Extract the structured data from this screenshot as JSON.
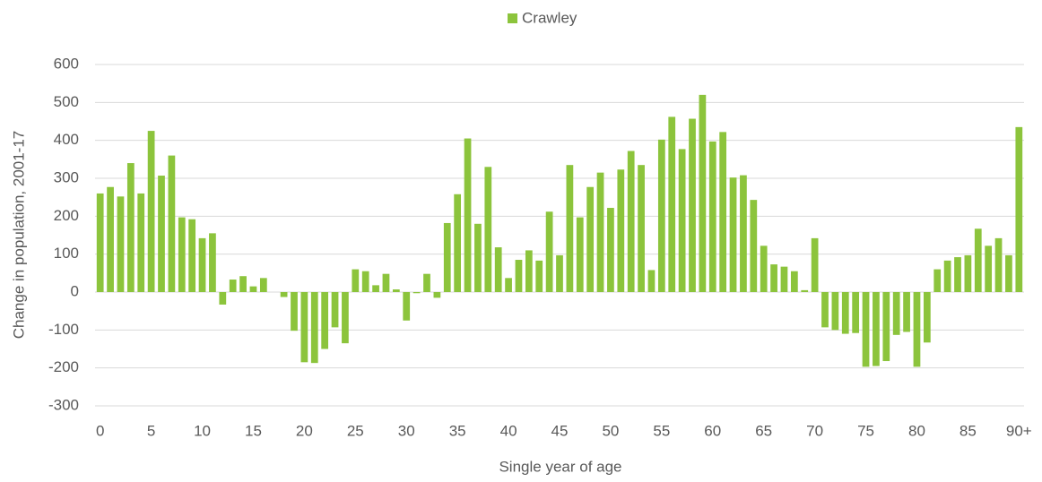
{
  "chart_data": {
    "type": "bar",
    "y_label": "Change in population, 2001-17",
    "x_label": "Single year of age",
    "categories": [
      "0",
      null,
      null,
      null,
      null,
      "5",
      null,
      null,
      null,
      null,
      "10",
      null,
      null,
      null,
      null,
      "15",
      null,
      null,
      null,
      null,
      "20",
      null,
      null,
      null,
      null,
      "25",
      null,
      null,
      null,
      null,
      "30",
      null,
      null,
      null,
      null,
      "35",
      null,
      null,
      null,
      null,
      "40",
      null,
      null,
      null,
      null,
      "45",
      null,
      null,
      null,
      null,
      "50",
      null,
      null,
      null,
      null,
      "55",
      null,
      null,
      null,
      null,
      "60",
      null,
      null,
      null,
      null,
      "65",
      null,
      null,
      null,
      null,
      "70",
      null,
      null,
      null,
      null,
      "75",
      null,
      null,
      null,
      null,
      "80",
      null,
      null,
      null,
      null,
      "85",
      null,
      null,
      null,
      null,
      "90+"
    ],
    "series": [
      {
        "name": "Crawley",
        "color": "#8cc43c",
        "values": [
          260,
          277,
          252,
          340,
          260,
          425,
          307,
          360,
          197,
          192,
          142,
          155,
          -33,
          33,
          42,
          15,
          37,
          0,
          -13,
          -102,
          -185,
          -187,
          -150,
          -93,
          -135,
          60,
          55,
          18,
          48,
          7,
          -75,
          -3,
          48,
          -15,
          182,
          258,
          405,
          180,
          330,
          118,
          37,
          85,
          110,
          83,
          212,
          97,
          335,
          197,
          277,
          315,
          222,
          323,
          372,
          335,
          58,
          402,
          462,
          377,
          457,
          520,
          397,
          422,
          302,
          308,
          243,
          122,
          73,
          67,
          55,
          5,
          142,
          -93,
          -100,
          -110,
          -108,
          -197,
          -195,
          -182,
          -113,
          -105,
          -197,
          -133,
          60,
          83,
          92,
          97,
          167,
          122,
          142,
          97,
          435
        ]
      }
    ],
    "ylim": [
      -300,
      600
    ],
    "yticks": [
      -300,
      -200,
      -100,
      0,
      100,
      200,
      300,
      400,
      500,
      600
    ],
    "grid": true,
    "legend": "top"
  }
}
